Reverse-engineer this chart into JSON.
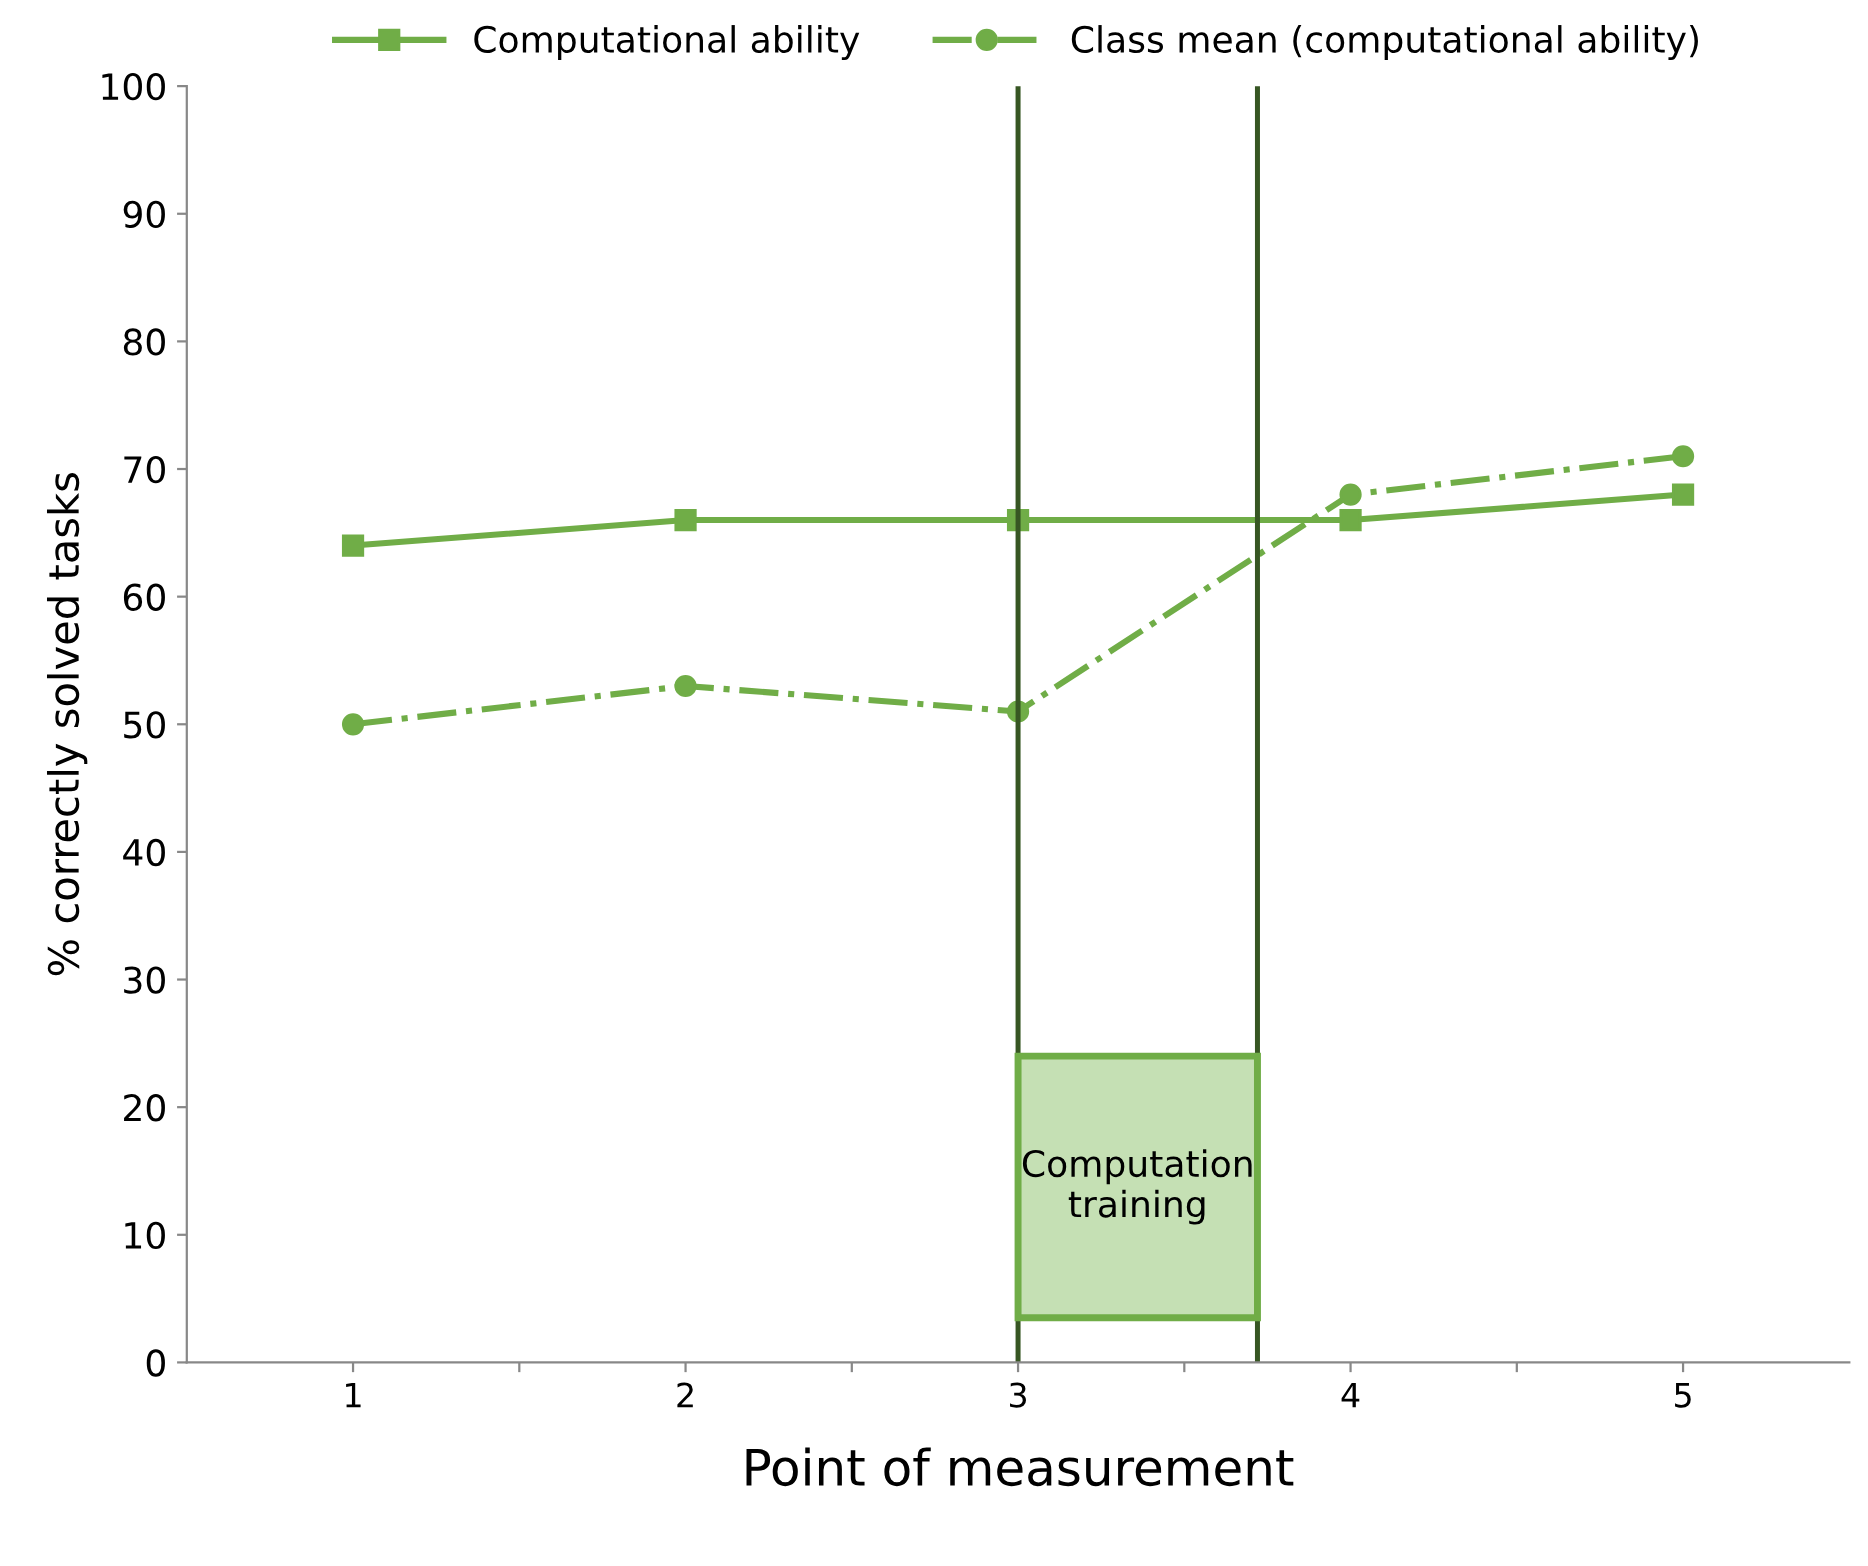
{
  "chart_data": {
    "type": "line",
    "xlabel": "Point of measurement",
    "ylabel": "% correctly solved tasks",
    "x": [
      1,
      2,
      3,
      4,
      5
    ],
    "xlim": [
      0.5,
      5.5
    ],
    "xticks": [
      1,
      2,
      3,
      4,
      5,
      {
        "value": 1.5,
        "label": null
      },
      {
        "value": 2.5,
        "label": null
      },
      {
        "value": 3.5,
        "label": null
      },
      {
        "value": 4.5,
        "label": null
      }
    ],
    "ylim": [
      0,
      100
    ],
    "yticks": [
      0,
      10,
      20,
      30,
      40,
      50,
      60,
      70,
      80,
      90,
      100
    ],
    "series": [
      {
        "name": "Computational ability",
        "color": "#70ad47",
        "values": [
          64,
          66,
          66,
          66,
          68
        ],
        "marker": "square",
        "line_style": "solid"
      },
      {
        "name": "Class mean (computational ability)",
        "color": "#70ad47",
        "values": [
          50,
          53,
          51,
          68,
          71
        ],
        "marker": "circle",
        "line_style": "dashdot"
      }
    ],
    "ref_lines": [
      {
        "axis": "x",
        "value": 3.0,
        "color": "#375623"
      },
      {
        "axis": "x",
        "value": 3.72,
        "color": "#375623"
      }
    ],
    "annotations": [
      "Computation\ntraining"
    ],
    "grid": false,
    "legend": "top"
  }
}
